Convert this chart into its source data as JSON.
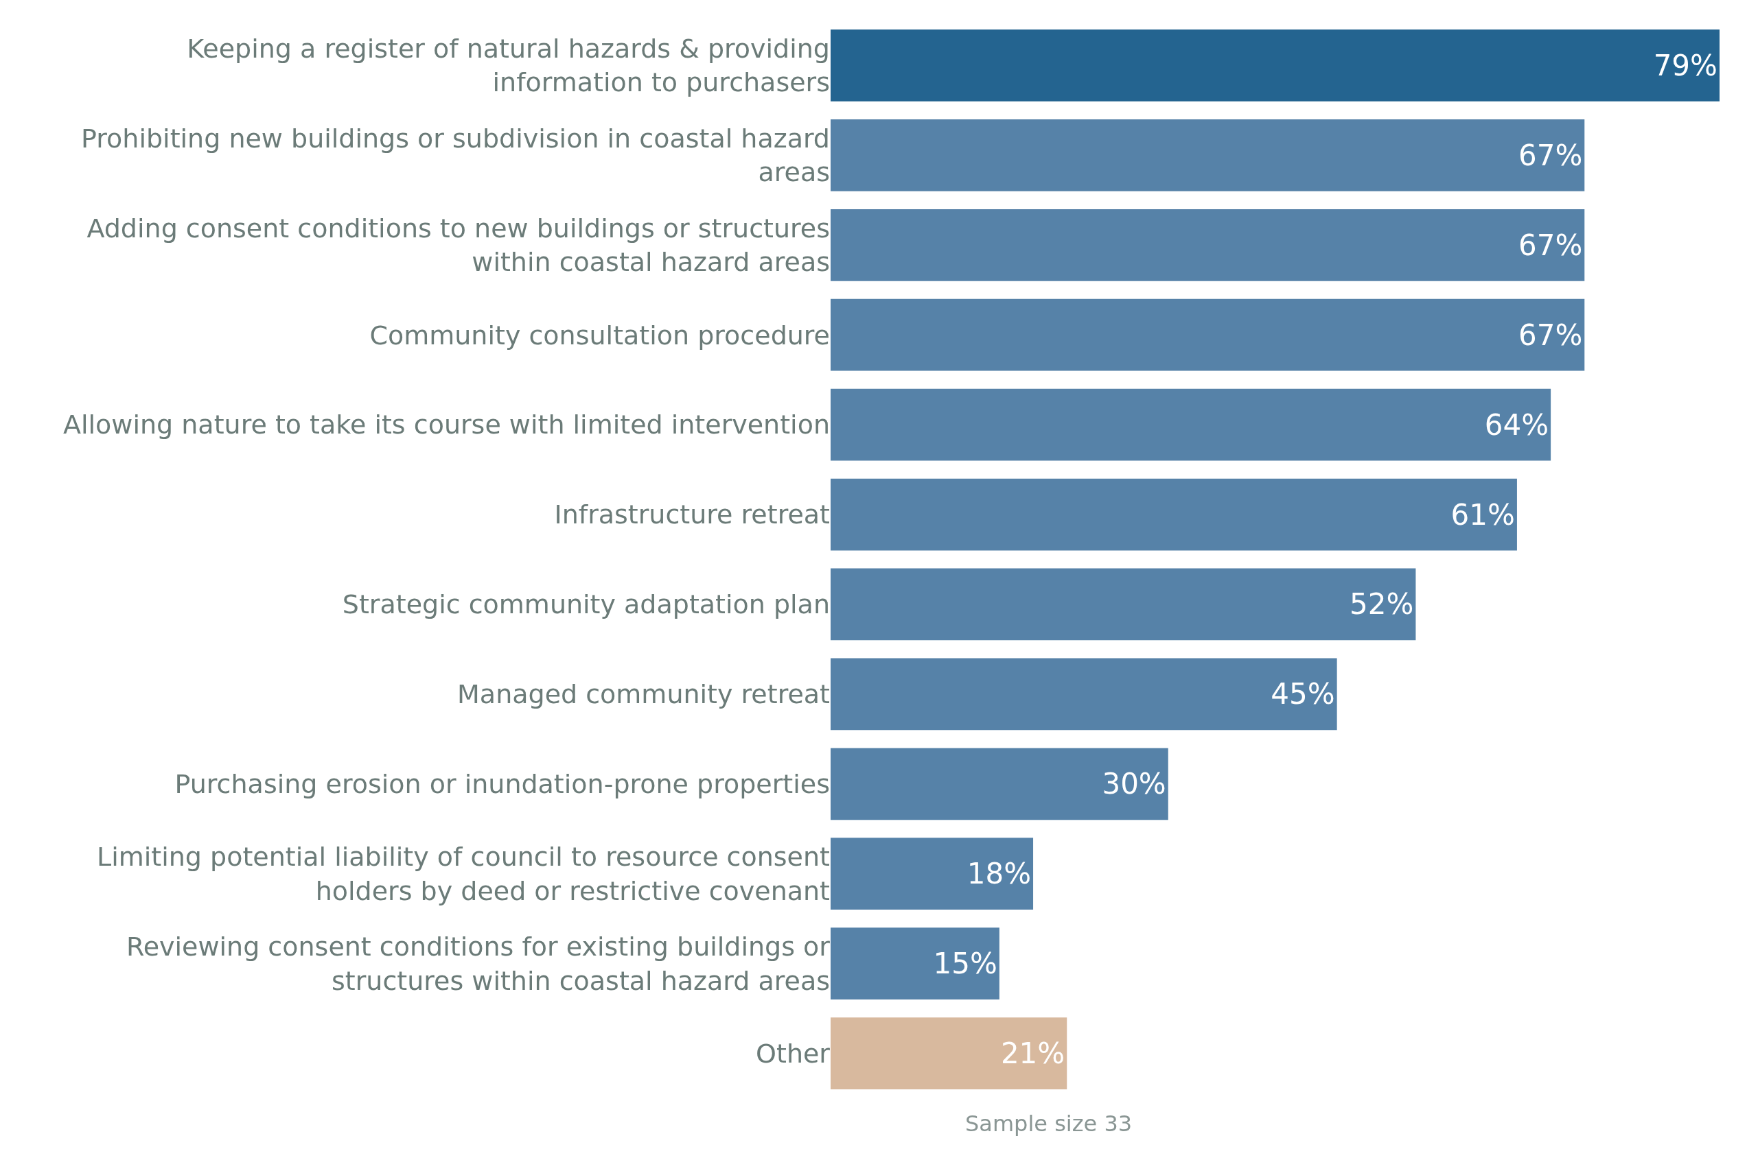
{
  "chart_data": {
    "type": "bar",
    "orientation": "horizontal",
    "data_labels": true,
    "categories": [
      "Keeping a register of natural hazards & providing information to purchasers",
      "Prohibiting new buildings or subdivision in coastal hazard areas",
      "Adding consent conditions to new buildings or structures within coastal hazard areas",
      "Community consultation procedure",
      "Allowing nature to take its course with limited intervention",
      "Infrastructure retreat",
      "Strategic community adaptation plan",
      "Managed community retreat",
      "Purchasing erosion or inundation-prone properties",
      "Limiting potential liability of council to resource consent holders by deed or restrictive covenant",
      "Reviewing consent conditions for existing buildings or structures within coastal hazard areas",
      "Other"
    ],
    "values": [
      79,
      67,
      67,
      67,
      64,
      61,
      52,
      45,
      30,
      18,
      15,
      21
    ],
    "colors": [
      "#246490",
      "#5682a8",
      "#5682a8",
      "#5682a8",
      "#5682a8",
      "#5682a8",
      "#5682a8",
      "#5682a8",
      "#5682a8",
      "#5682a8",
      "#5682a8",
      "#d8b99e"
    ],
    "value_labels": [
      "79%",
      "67%",
      "67%",
      "67%",
      "64%",
      "61%",
      "52%",
      "45%",
      "30%",
      "18%",
      "15%",
      "21%"
    ],
    "annotations": [
      "Sample size 33"
    ]
  }
}
